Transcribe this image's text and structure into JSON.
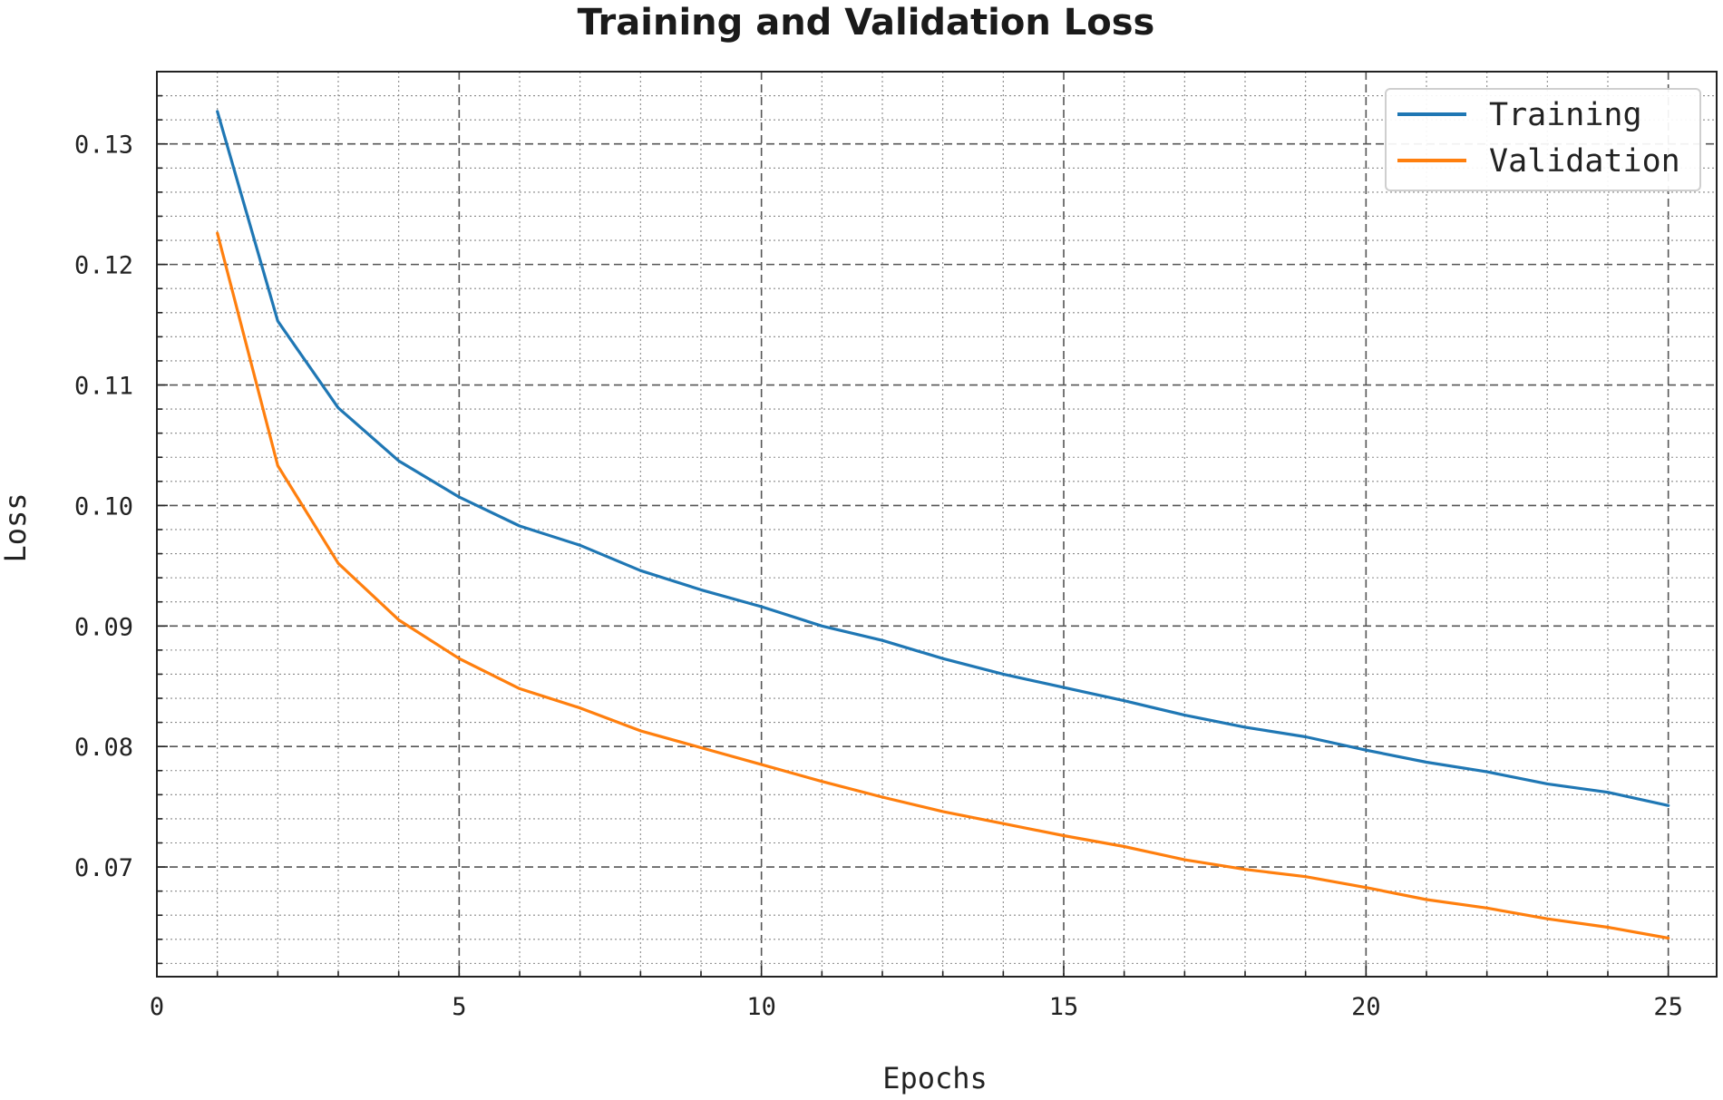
{
  "chart_data": {
    "type": "line",
    "title": "Training and Validation Loss",
    "xlabel": "Epochs",
    "ylabel": "Loss",
    "xlim": [
      0,
      25.8
    ],
    "ylim": [
      0.0609,
      0.136
    ],
    "x_major_ticks": [
      0,
      5,
      10,
      15,
      20,
      25
    ],
    "x_minor_step": 1,
    "y_major_ticks": [
      0.07,
      0.08,
      0.09,
      0.1,
      0.11,
      0.12,
      0.13
    ],
    "y_tick_labels": [
      "0.07",
      "0.08",
      "0.09",
      "0.10",
      "0.11",
      "0.12",
      "0.13"
    ],
    "y_minor_step": 0.002,
    "grid": true,
    "legend_position": "top-right",
    "x": [
      1,
      2,
      3,
      4,
      5,
      6,
      7,
      8,
      9,
      10,
      11,
      12,
      13,
      14,
      15,
      16,
      17,
      18,
      19,
      20,
      21,
      22,
      23,
      24,
      25
    ],
    "series": [
      {
        "name": "Training",
        "color": "#1f77b4",
        "values": [
          0.1327,
          0.1153,
          0.1081,
          0.1037,
          0.1007,
          0.0983,
          0.0967,
          0.0946,
          0.093,
          0.0916,
          0.09,
          0.0888,
          0.0873,
          0.086,
          0.0849,
          0.0838,
          0.0826,
          0.0816,
          0.0808,
          0.0797,
          0.0787,
          0.0779,
          0.0769,
          0.0762,
          0.0751
        ]
      },
      {
        "name": "Validation",
        "color": "#ff7f0e",
        "values": [
          0.1226,
          0.1033,
          0.0952,
          0.0905,
          0.0873,
          0.0848,
          0.0832,
          0.0813,
          0.0799,
          0.0785,
          0.0771,
          0.0758,
          0.0746,
          0.0736,
          0.0726,
          0.0717,
          0.0706,
          0.0698,
          0.0692,
          0.0683,
          0.0673,
          0.0666,
          0.0657,
          0.065,
          0.0641
        ]
      }
    ]
  }
}
